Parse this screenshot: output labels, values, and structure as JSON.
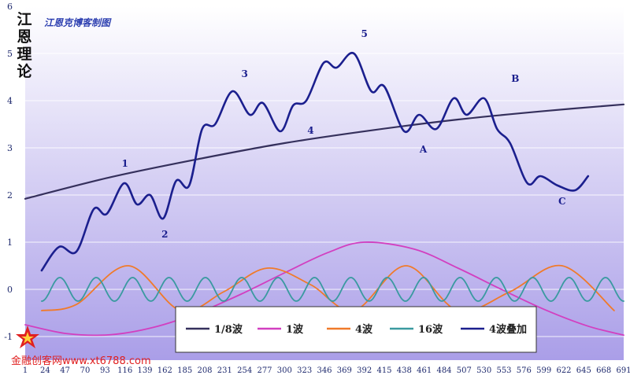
{
  "side_label": "江恩理论",
  "watermark": "金融创客网www.xt6788.com",
  "colors": {
    "plot_bg_top": "#ffffff",
    "plot_bg_bottom": "#aa9ee8",
    "trend": "#35305c",
    "wave1": "#d23fc0",
    "wave4": "#f07a2a",
    "wave16": "#3a9aa0",
    "combined": "#1b1f8e",
    "axis_text": "#1f2a6e",
    "title": "#2d3fb0"
  },
  "chart_data": {
    "type": "line",
    "title": "江恩克博客制图",
    "xlabel": "",
    "ylabel": "",
    "ylim": [
      -1.5,
      6
    ],
    "xlim": [
      1,
      691
    ],
    "x_ticks": [
      1,
      24,
      47,
      70,
      93,
      116,
      139,
      162,
      185,
      208,
      231,
      254,
      277,
      300,
      323,
      346,
      369,
      392,
      415,
      438,
      461,
      484,
      507,
      530,
      553,
      576,
      599,
      622,
      645,
      668,
      691
    ],
    "y_ticks": [
      -1,
      0,
      1,
      2,
      3,
      4,
      5,
      6
    ],
    "grid": true,
    "legend_position": "bottom-center",
    "series": [
      {
        "name": "1/8波",
        "color": "#35305c",
        "x": [
          1,
          100,
          200,
          300,
          400,
          500,
          600,
          691
        ],
        "y": [
          1.92,
          2.38,
          2.76,
          3.1,
          3.37,
          3.6,
          3.78,
          3.92
        ]
      },
      {
        "name": "1波",
        "color": "#d23fc0",
        "x": [
          1,
          50,
          100,
          150,
          200,
          250,
          300,
          350,
          392,
          450,
          500,
          550,
          600,
          650,
          691
        ],
        "y": [
          -0.75,
          -0.94,
          -0.96,
          -0.8,
          -0.5,
          -0.1,
          0.35,
          0.78,
          1.0,
          0.85,
          0.45,
          0.0,
          -0.43,
          -0.78,
          -0.97
        ]
      },
      {
        "name": "4波",
        "color": "#f07a2a",
        "x": [
          20,
          60,
          120,
          180,
          230,
          280,
          330,
          380,
          440,
          500,
          560,
          620,
          680
        ],
        "y": [
          -0.45,
          -0.32,
          0.5,
          -0.45,
          -0.05,
          0.45,
          0.1,
          -0.45,
          0.5,
          -0.45,
          -0.05,
          0.5,
          -0.45
        ]
      },
      {
        "name": "16波",
        "color": "#3a9aa0",
        "periods": 16,
        "amplitude": 0.25,
        "x_start": 20,
        "x_end": 691
      },
      {
        "name": "4波叠加",
        "color": "#1b1f8e",
        "x": [
          20,
          40,
          60,
          80,
          95,
          115,
          130,
          145,
          160,
          175,
          190,
          205,
          220,
          240,
          260,
          275,
          295,
          310,
          325,
          345,
          360,
          380,
          400,
          415,
          438,
          455,
          475,
          495,
          510,
          530,
          545,
          560,
          580,
          595,
          615,
          635,
          650
        ],
        "y": [
          0.4,
          0.9,
          0.8,
          1.7,
          1.6,
          2.25,
          1.8,
          2.0,
          1.5,
          2.3,
          2.2,
          3.4,
          3.5,
          4.2,
          3.7,
          3.95,
          3.35,
          3.9,
          4.0,
          4.8,
          4.7,
          5.0,
          4.2,
          4.3,
          3.35,
          3.7,
          3.4,
          4.05,
          3.7,
          4.05,
          3.4,
          3.1,
          2.25,
          2.4,
          2.2,
          2.1,
          2.4
        ]
      }
    ],
    "annotations": [
      {
        "text": "1",
        "x": 116,
        "y": 2.6
      },
      {
        "text": "2",
        "x": 162,
        "y": 1.1
      },
      {
        "text": "3",
        "x": 254,
        "y": 4.5
      },
      {
        "text": "4",
        "x": 330,
        "y": 3.3
      },
      {
        "text": "5",
        "x": 392,
        "y": 5.35
      },
      {
        "text": "A",
        "x": 460,
        "y": 2.9
      },
      {
        "text": "B",
        "x": 566,
        "y": 4.4
      },
      {
        "text": "C",
        "x": 620,
        "y": 1.8
      }
    ]
  }
}
